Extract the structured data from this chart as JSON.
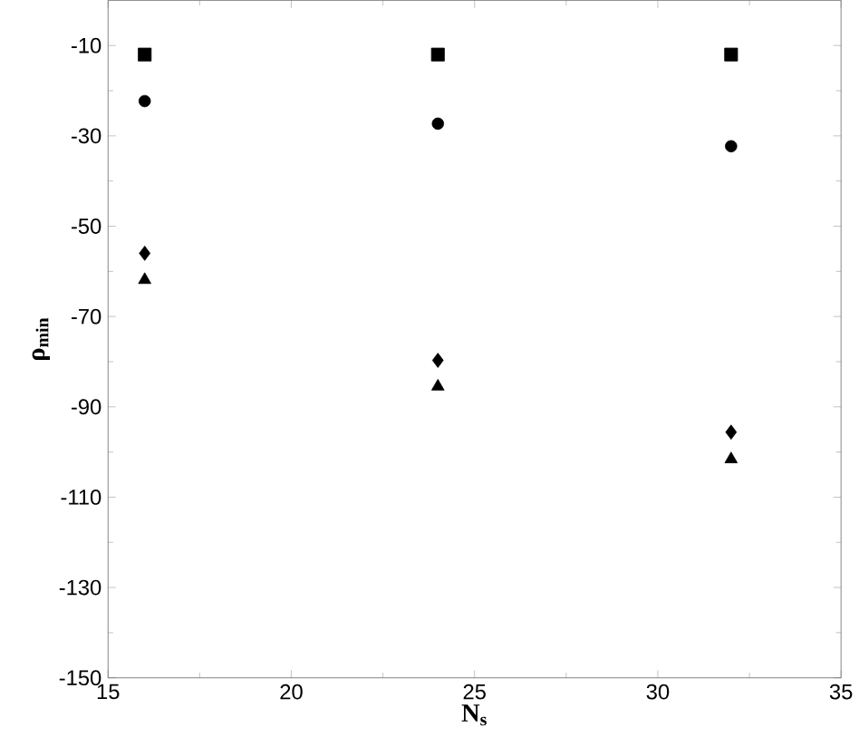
{
  "chart_data": {
    "type": "scatter",
    "xlabel": "N$_{s}$",
    "ylabel": "ρ$_{min}$",
    "x": [
      16,
      24,
      32
    ],
    "series": [
      {
        "color": "#000000",
        "marker": "square",
        "values": [
          -12,
          -12,
          -12
        ]
      },
      {
        "color": "#000000",
        "marker": "circle",
        "values": [
          -22.3,
          -27.3,
          -32.3
        ]
      },
      {
        "color": "#000000",
        "marker": "diamond",
        "values": [
          -56,
          -79.7,
          -95.6
        ]
      },
      {
        "color": "#000000",
        "marker": "triangle",
        "values": [
          -61.9,
          -85.5,
          -101.6
        ]
      }
    ],
    "xlim": [
      15,
      35
    ],
    "ylim": [
      -150,
      0
    ],
    "xticks": [
      15,
      20,
      25,
      30,
      35
    ],
    "yticks": [
      -150,
      -130,
      -110,
      -90,
      -70,
      -50,
      -30,
      -10
    ],
    "tick_labels": "xy"
  }
}
